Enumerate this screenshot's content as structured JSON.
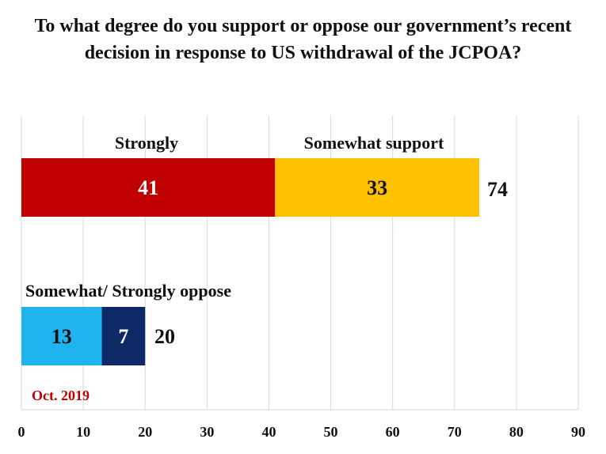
{
  "chart_data": {
    "type": "bar",
    "orientation": "horizontal",
    "stacked": true,
    "title": "To what degree do you support or oppose our government’s recent decision in response to US withdrawal of the JCPOA?",
    "xlim": [
      0,
      90
    ],
    "x_ticks": [
      0,
      10,
      20,
      30,
      40,
      50,
      60,
      70,
      80,
      90
    ],
    "grid": true,
    "bars": [
      {
        "total": 74,
        "segments": [
          {
            "label": "Strongly",
            "value": 41,
            "color": "#c00000",
            "text_color": "#ffffff"
          },
          {
            "label": "Somewhat support",
            "value": 33,
            "color": "#ffc000",
            "text_color": "#111111"
          }
        ]
      },
      {
        "group_label": "Somewhat/ Strongly oppose",
        "total": 20,
        "segments": [
          {
            "value": 13,
            "color": "#1fb4f0",
            "text_color": "#111111"
          },
          {
            "value": 7,
            "color": "#0d2a66",
            "text_color": "#ffffff"
          }
        ]
      }
    ],
    "note": {
      "text": "Oct. 2019",
      "color": "#c00000"
    }
  }
}
